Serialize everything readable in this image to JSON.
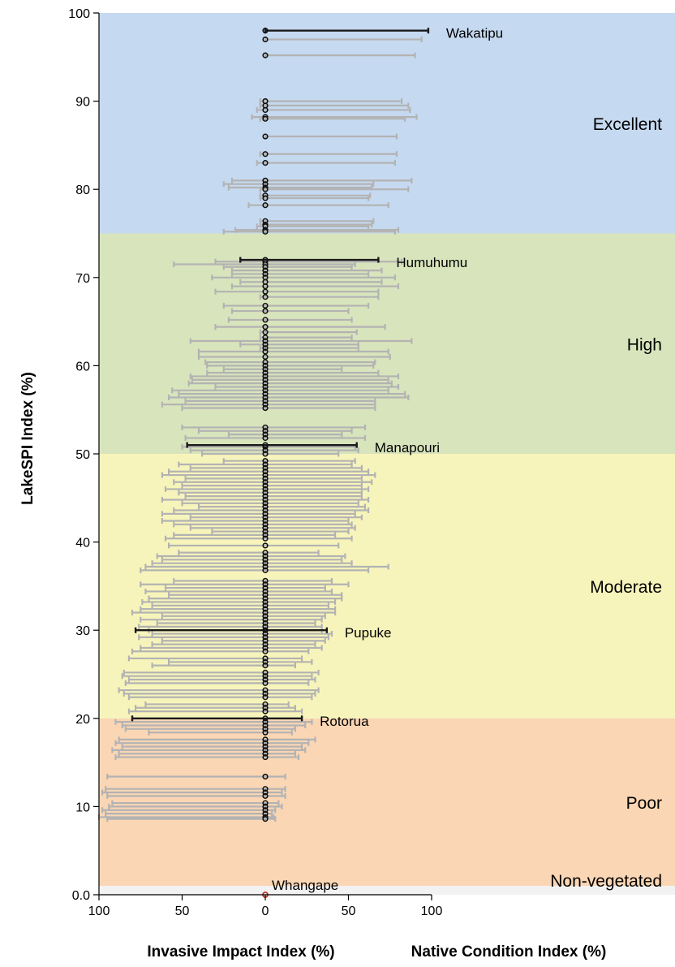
{
  "chart_data": {
    "type": "error-bar",
    "ylabel": "LakeSPI Index (%)",
    "xlabels": [
      "Invasive Impact Index (%)",
      "Native Condition Index (%)"
    ],
    "ylim": [
      0,
      100
    ],
    "yticks": [
      "0.0",
      "10",
      "20",
      "30",
      "40",
      "50",
      "60",
      "70",
      "80",
      "90",
      "100"
    ],
    "xticks_invasive": [
      "100",
      "50",
      "0"
    ],
    "xticks_native": [
      "50",
      "100"
    ],
    "bands": [
      {
        "label": "Excellent",
        "from": 75,
        "to": 100,
        "color": "#c5d9f0"
      },
      {
        "label": "High",
        "from": 50,
        "to": 75,
        "color": "#d8e4bc"
      },
      {
        "label": "Moderate",
        "from": 20,
        "to": 50,
        "color": "#f7f4bb"
      },
      {
        "label": "Poor",
        "from": 1,
        "to": 20,
        "color": "#fad6b4"
      },
      {
        "label": "Non-vegetated",
        "from": 0,
        "to": 1,
        "color": "#f2f2f2"
      }
    ],
    "highlighted": [
      {
        "name": "Wakatipu",
        "lakespi": 98.0,
        "invasive": 0,
        "native": 98
      },
      {
        "name": "Humuhumu",
        "lakespi": 72.0,
        "invasive": 15,
        "native": 68
      },
      {
        "name": "Manapouri",
        "lakespi": 51.0,
        "invasive": 47,
        "native": 55
      },
      {
        "name": "Pupuke",
        "lakespi": 30.0,
        "invasive": 78,
        "native": 37
      },
      {
        "name": "Rotorua",
        "lakespi": 20.0,
        "invasive": 80,
        "native": 22
      },
      {
        "name": "Whangape",
        "lakespi": 0.0,
        "invasive": 0,
        "native": 0
      }
    ],
    "other_lakes": [
      [
        97,
        0,
        94
      ],
      [
        95.2,
        0,
        90
      ],
      [
        90,
        3,
        82
      ],
      [
        89.5,
        3,
        86
      ],
      [
        89,
        5,
        87
      ],
      [
        88.2,
        8,
        91
      ],
      [
        88,
        3,
        84
      ],
      [
        86,
        0,
        79
      ],
      [
        84,
        3,
        79
      ],
      [
        83,
        5,
        78
      ],
      [
        81,
        20,
        88
      ],
      [
        80.6,
        25,
        65
      ],
      [
        80.2,
        22,
        64
      ],
      [
        80,
        3,
        86
      ],
      [
        79.3,
        3,
        63
      ],
      [
        79,
        3,
        62
      ],
      [
        78.2,
        10,
        74
      ],
      [
        76.4,
        3,
        65
      ],
      [
        76,
        3,
        64
      ],
      [
        75.8,
        5,
        62
      ],
      [
        75.4,
        18,
        80
      ],
      [
        75.2,
        25,
        78
      ],
      [
        71.8,
        30,
        82
      ],
      [
        71.5,
        55,
        54
      ],
      [
        71.2,
        25,
        52
      ],
      [
        70.8,
        20,
        70
      ],
      [
        70.4,
        20,
        62
      ],
      [
        70.0,
        32,
        78
      ],
      [
        69.5,
        15,
        70
      ],
      [
        69.0,
        20,
        80
      ],
      [
        68.4,
        30,
        68
      ],
      [
        67.8,
        3,
        68
      ],
      [
        66.8,
        25,
        62
      ],
      [
        66.2,
        20,
        50
      ],
      [
        65.2,
        22,
        52
      ],
      [
        64.4,
        30,
        72
      ],
      [
        63.8,
        3,
        55
      ],
      [
        63.2,
        3,
        52
      ],
      [
        62.8,
        45,
        88
      ],
      [
        62.4,
        15,
        56
      ],
      [
        62.0,
        3,
        56
      ],
      [
        61.6,
        40,
        74
      ],
      [
        61.0,
        40,
        75
      ],
      [
        60.4,
        36,
        66
      ],
      [
        60.0,
        35,
        65
      ],
      [
        59.6,
        25,
        46
      ],
      [
        59.2,
        35,
        68
      ],
      [
        58.8,
        45,
        80
      ],
      [
        58.4,
        44,
        74
      ],
      [
        58.0,
        46,
        76
      ],
      [
        57.6,
        30,
        80
      ],
      [
        57.2,
        56,
        74
      ],
      [
        56.8,
        52,
        84
      ],
      [
        56.4,
        58,
        86
      ],
      [
        56.0,
        48,
        66
      ],
      [
        55.6,
        62,
        66
      ],
      [
        55.2,
        50,
        66
      ],
      [
        53.0,
        50,
        60
      ],
      [
        52.6,
        40,
        52
      ],
      [
        52.2,
        22,
        46
      ],
      [
        51.8,
        48,
        60
      ],
      [
        50.8,
        50,
        54
      ],
      [
        50.4,
        45,
        56
      ],
      [
        50.0,
        38,
        44
      ],
      [
        49.2,
        25,
        54
      ],
      [
        48.8,
        52,
        52
      ],
      [
        48.4,
        45,
        58
      ],
      [
        48.0,
        58,
        62
      ],
      [
        47.6,
        62,
        66
      ],
      [
        47.2,
        48,
        58
      ],
      [
        46.8,
        55,
        64
      ],
      [
        46.4,
        50,
        58
      ],
      [
        46.0,
        60,
        62
      ],
      [
        45.6,
        52,
        58
      ],
      [
        45.2,
        48,
        58
      ],
      [
        44.8,
        62,
        62
      ],
      [
        44.4,
        50,
        56
      ],
      [
        44.0,
        40,
        60
      ],
      [
        43.6,
        55,
        62
      ],
      [
        43.2,
        62,
        54
      ],
      [
        42.8,
        45,
        58
      ],
      [
        42.4,
        62,
        50
      ],
      [
        42.0,
        55,
        52
      ],
      [
        41.6,
        45,
        54
      ],
      [
        41.2,
        32,
        50
      ],
      [
        40.8,
        55,
        42
      ],
      [
        40.4,
        60,
        52
      ],
      [
        39.6,
        58,
        44
      ],
      [
        38.8,
        52,
        32
      ],
      [
        38.4,
        65,
        48
      ],
      [
        38.0,
        62,
        46
      ],
      [
        37.6,
        68,
        52
      ],
      [
        37.2,
        72,
        74
      ],
      [
        36.8,
        75,
        62
      ],
      [
        35.6,
        55,
        40
      ],
      [
        35.2,
        75,
        50
      ],
      [
        34.8,
        60,
        36
      ],
      [
        34.4,
        72,
        40
      ],
      [
        34.0,
        58,
        46
      ],
      [
        33.6,
        70,
        46
      ],
      [
        33.2,
        74,
        42
      ],
      [
        32.8,
        68,
        38
      ],
      [
        32.4,
        75,
        42
      ],
      [
        32.0,
        80,
        42
      ],
      [
        31.6,
        62,
        36
      ],
      [
        31.2,
        75,
        34
      ],
      [
        30.8,
        65,
        30
      ],
      [
        30.4,
        76,
        34
      ],
      [
        30.0,
        70,
        34
      ],
      [
        29.6,
        68,
        40
      ],
      [
        29.2,
        76,
        38
      ],
      [
        28.8,
        62,
        36
      ],
      [
        28.4,
        68,
        30
      ],
      [
        28.0,
        75,
        34
      ],
      [
        27.6,
        80,
        26
      ],
      [
        26.8,
        82,
        22
      ],
      [
        26.4,
        58,
        28
      ],
      [
        26.0,
        68,
        18
      ],
      [
        25.2,
        85,
        32
      ],
      [
        24.8,
        86,
        28
      ],
      [
        24.4,
        82,
        30
      ],
      [
        24.0,
        84,
        26
      ],
      [
        23.2,
        88,
        32
      ],
      [
        22.8,
        85,
        30
      ],
      [
        22.4,
        82,
        28
      ],
      [
        21.6,
        72,
        14
      ],
      [
        21.2,
        78,
        18
      ],
      [
        20.8,
        82,
        22
      ],
      [
        19.6,
        90,
        28
      ],
      [
        19.2,
        86,
        24
      ],
      [
        18.8,
        84,
        18
      ],
      [
        18.4,
        70,
        16
      ],
      [
        17.6,
        88,
        30
      ],
      [
        17.2,
        90,
        26
      ],
      [
        16.8,
        86,
        22
      ],
      [
        16.4,
        92,
        24
      ],
      [
        16.0,
        88,
        18
      ],
      [
        15.6,
        90,
        20
      ],
      [
        13.4,
        95,
        12
      ],
      [
        12.0,
        96,
        12
      ],
      [
        11.6,
        98,
        10
      ],
      [
        11.2,
        95,
        12
      ],
      [
        10.4,
        92,
        8
      ],
      [
        10.0,
        94,
        10
      ],
      [
        9.6,
        98,
        6
      ],
      [
        9.2,
        96,
        4
      ],
      [
        8.8,
        100,
        5
      ],
      [
        8.6,
        95,
        6
      ]
    ]
  }
}
